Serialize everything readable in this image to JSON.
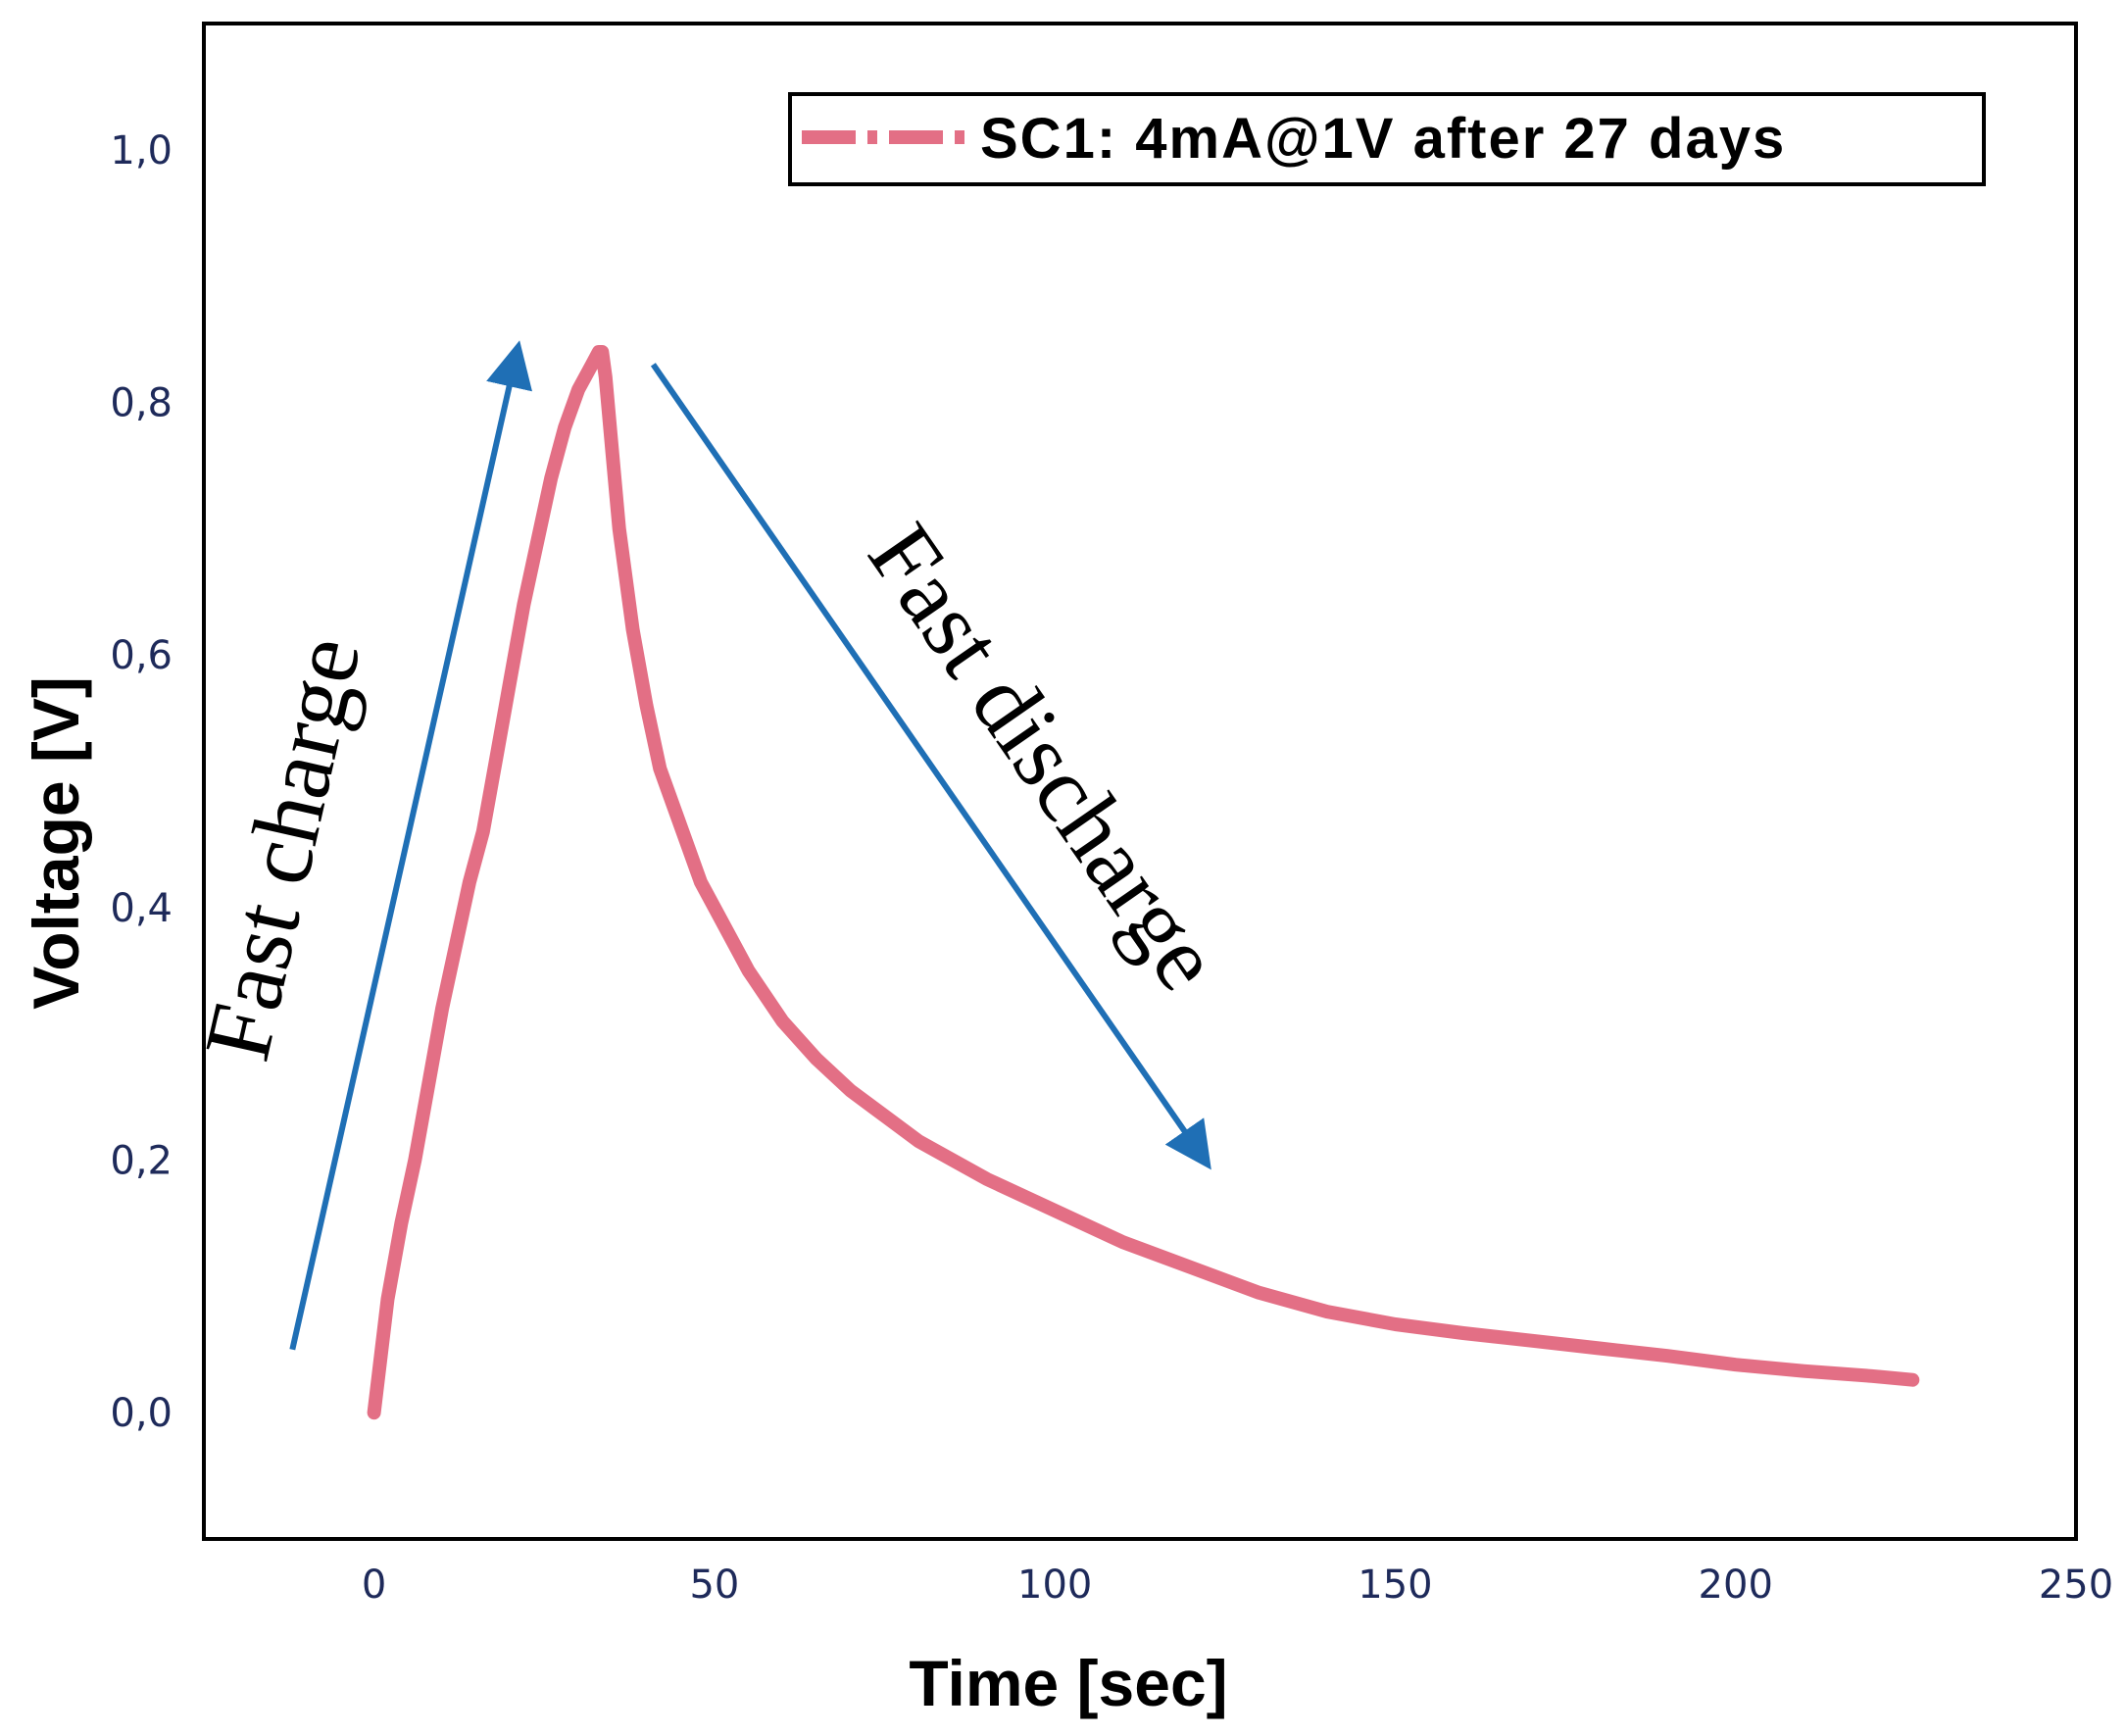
{
  "chart_data": {
    "type": "line",
    "title": "",
    "xlabel": "Time [sec]",
    "ylabel": "Voltage [V]",
    "xlim": [
      -25,
      250
    ],
    "ylim": [
      -0.1,
      1.1
    ],
    "x_ticks": [
      0,
      50,
      100,
      150,
      200,
      250
    ],
    "x_tick_labels": [
      "0",
      "50",
      "100",
      "150",
      "200",
      "250"
    ],
    "y_ticks": [
      0.0,
      0.2,
      0.4,
      0.6,
      0.8,
      1.0
    ],
    "y_tick_labels": [
      "0,0",
      "0,2",
      "0,4",
      "0,6",
      "0,8",
      "1,0"
    ],
    "grid": false,
    "legend_position": "top-right",
    "series": [
      {
        "name": "SC1: 4mA@1V after 27 days",
        "color": "#e36f85",
        "x": [
          0,
          2,
          4,
          6,
          8,
          10,
          12,
          14,
          16,
          18,
          20,
          22,
          24,
          26,
          28,
          30,
          32,
          33,
          33.5,
          34,
          35,
          36,
          38,
          40,
          42,
          44,
          46,
          48,
          50,
          55,
          60,
          65,
          70,
          75,
          80,
          90,
          100,
          110,
          120,
          130,
          140,
          150,
          160,
          170,
          180,
          190,
          200,
          210,
          220,
          226
        ],
        "y": [
          0.0,
          0.09,
          0.15,
          0.2,
          0.26,
          0.32,
          0.37,
          0.42,
          0.46,
          0.52,
          0.58,
          0.64,
          0.69,
          0.74,
          0.78,
          0.81,
          0.83,
          0.84,
          0.84,
          0.82,
          0.76,
          0.7,
          0.62,
          0.56,
          0.51,
          0.48,
          0.45,
          0.42,
          0.4,
          0.35,
          0.31,
          0.28,
          0.255,
          0.235,
          0.215,
          0.185,
          0.16,
          0.135,
          0.115,
          0.095,
          0.08,
          0.07,
          0.063,
          0.057,
          0.051,
          0.045,
          0.038,
          0.033,
          0.029,
          0.026
        ]
      }
    ],
    "annotations": [
      {
        "text": "Fast charge",
        "color": "#1f6fb5",
        "from": [
          -12,
          0.05
        ],
        "to": [
          21,
          0.84
        ]
      },
      {
        "text": "Fast discharge",
        "color": "#1f6fb5",
        "from": [
          41,
          0.83
        ],
        "to": [
          122,
          0.2
        ]
      }
    ]
  }
}
